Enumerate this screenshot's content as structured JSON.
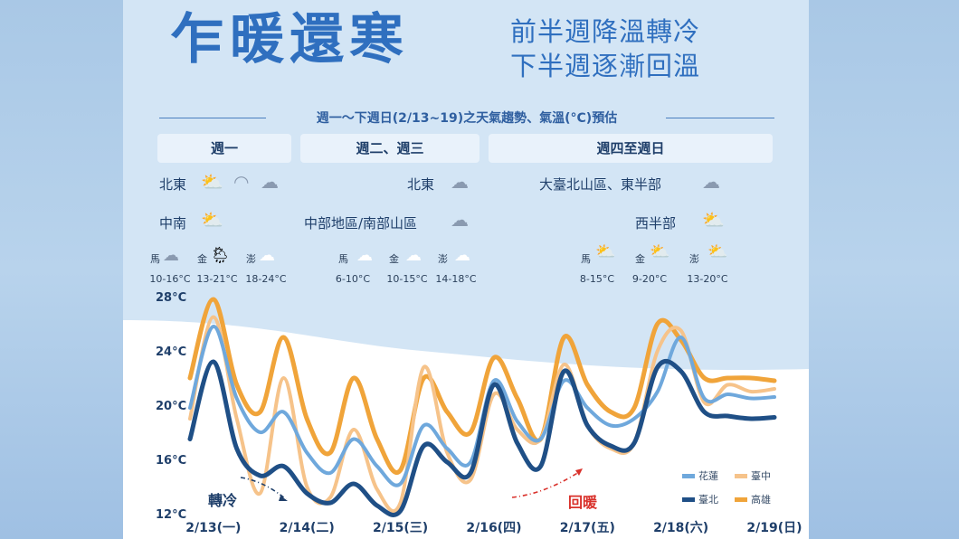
{
  "poster": {
    "title": "乍暖還寒",
    "subtitle_line1": "前半週降溫轉冷",
    "subtitle_line2": "下半週逐漸回溫",
    "period": "週一～下週日(2/13~19)之天氣趨勢、氣溫(°C)預估"
  },
  "sections": [
    {
      "header": "週一",
      "rows": [
        {
          "region": "北東",
          "icons": [
            "partly-sunny-icon",
            "rainbow-icon",
            "rain-cloud-icon"
          ]
        },
        {
          "region": "中南",
          "icons": [
            "partly-sunny-icon"
          ]
        }
      ],
      "islands": [
        {
          "name": "馬",
          "temp": "10-16°C",
          "icon": "rain-cloud-icon"
        },
        {
          "name": "金",
          "temp": "13-21°C",
          "icon": "partly-rain-icon"
        },
        {
          "name": "澎",
          "temp": "18-24°C",
          "icon": "cloud-icon"
        }
      ]
    },
    {
      "header": "週二、週三",
      "rows": [
        {
          "region": "北東",
          "icons": [
            "rain-cloud-icon"
          ]
        },
        {
          "region": "中部地區/南部山區",
          "icons": [
            "rain-cloud-icon"
          ]
        }
      ],
      "islands": [
        {
          "name": "馬",
          "temp": "6-10°C",
          "icon": "cloud-icon"
        },
        {
          "name": "金",
          "temp": "10-15°C",
          "icon": "cloud-icon"
        },
        {
          "name": "澎",
          "temp": "14-18°C",
          "icon": "cloud-icon"
        }
      ]
    },
    {
      "header": "週四至週日",
      "rows": [
        {
          "region": "大臺北山區、東半部",
          "icons": [
            "rain-cloud-icon"
          ]
        },
        {
          "region": "西半部",
          "icons": [
            "partly-sunny-icon"
          ]
        }
      ],
      "islands": [
        {
          "name": "馬",
          "temp": "8-15°C",
          "icon": "partly-sunny-icon"
        },
        {
          "name": "金",
          "temp": "9-20°C",
          "icon": "partly-sunny-icon"
        },
        {
          "name": "澎",
          "temp": "13-20°C",
          "icon": "partly-sunny-icon"
        }
      ]
    }
  ],
  "annotations": {
    "cooling": "轉冷",
    "warming": "回暖"
  },
  "colors": {
    "title": "#2f6fbf",
    "花蓮": "#6fa8dc",
    "臺中": "#f6c38a",
    "臺北": "#1f4f86",
    "高雄": "#f0a43a",
    "cooling": "#1f3f6a",
    "warming": "#d9312b"
  },
  "chart_data": {
    "type": "line",
    "title": "",
    "xlabel": "",
    "ylabel": "",
    "ylim": [
      12,
      28
    ],
    "yticks": [
      "28°C",
      "24°C",
      "20°C",
      "16°C",
      "12°C"
    ],
    "ytick_values": [
      28,
      24,
      20,
      16,
      12
    ],
    "x_labels": [
      "2/13(一)",
      "2/14(二)",
      "2/15(三)",
      "2/16(四)",
      "2/17(五)",
      "2/18(六)",
      "2/19(日)"
    ],
    "x_values": [
      0,
      0.25,
      0.5,
      0.75,
      1,
      1.25,
      1.5,
      1.75,
      2,
      2.25,
      2.5,
      2.75,
      3,
      3.25,
      3.5,
      3.75,
      4,
      4.25,
      4.5,
      4.75,
      5,
      5.25,
      5.5,
      5.75,
      6,
      6.25
    ],
    "series": [
      {
        "name": "花蓮",
        "values": [
          19.8,
          25.8,
          20.5,
          18.0,
          19.5,
          16.5,
          15.0,
          17.5,
          15.5,
          14.2,
          18.5,
          16.8,
          15.8,
          21.8,
          18.8,
          17.5,
          21.8,
          19.8,
          18.5,
          19.0,
          21.0,
          25.0,
          20.5,
          20.8,
          20.5,
          20.6
        ]
      },
      {
        "name": "臺中",
        "values": [
          19.0,
          26.5,
          19.0,
          13.5,
          22.0,
          14.0,
          13.2,
          18.2,
          13.8,
          12.8,
          22.8,
          16.5,
          14.5,
          20.8,
          18.2,
          17.5,
          23.0,
          18.5,
          16.8,
          17.2,
          24.0,
          25.5,
          20.2,
          21.5,
          21.0,
          21.2
        ]
      },
      {
        "name": "臺北",
        "values": [
          17.5,
          23.2,
          16.8,
          14.8,
          15.5,
          13.5,
          12.8,
          14.2,
          12.6,
          12.2,
          17.0,
          15.8,
          15.0,
          21.5,
          17.2,
          15.5,
          22.5,
          18.5,
          17.0,
          17.2,
          22.8,
          22.5,
          19.5,
          19.2,
          19.0,
          19.1
        ]
      },
      {
        "name": "高雄",
        "values": [
          22.0,
          27.8,
          21.5,
          19.5,
          25.0,
          19.0,
          16.5,
          22.0,
          17.5,
          15.2,
          22.0,
          19.5,
          18.0,
          23.5,
          20.5,
          17.5,
          25.0,
          21.5,
          19.5,
          19.8,
          26.0,
          24.8,
          22.0,
          22.0,
          22.0,
          21.8
        ]
      }
    ],
    "legend": {
      "placement": "bottom-right",
      "entries": [
        "花蓮",
        "臺中",
        "臺北",
        "高雄"
      ]
    }
  }
}
